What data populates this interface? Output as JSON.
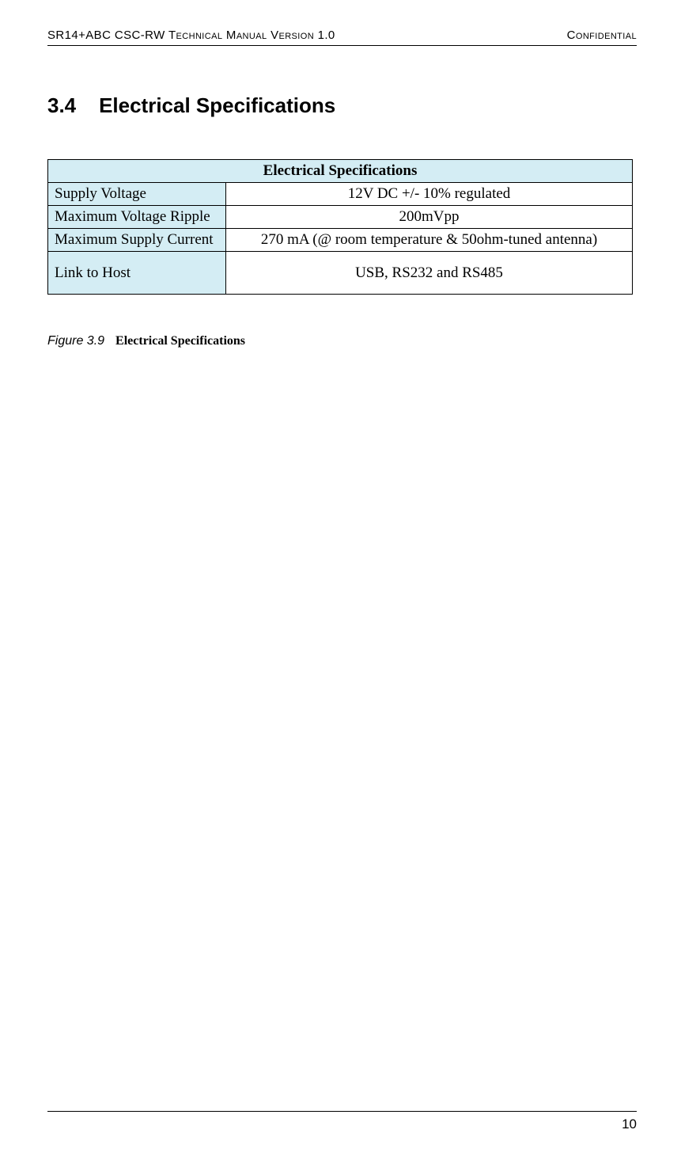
{
  "header": {
    "left": "SR14+ABC CSC-RW Technical Manual Version 1.0",
    "right": "Confidential"
  },
  "section": {
    "number": "3.4",
    "title": "Electrical Specifications"
  },
  "table": {
    "title": "Electrical Specifications",
    "rows": [
      {
        "label": "Supply Voltage",
        "value": "12V DC +/- 10% regulated"
      },
      {
        "label": "Maximum Voltage Ripple",
        "value": "200mVpp"
      },
      {
        "label": "Maximum Supply Current",
        "value": "270 mA (@ room temperature & 50ohm-tuned antenna)"
      },
      {
        "label": "Link to Host",
        "value": "USB, RS232 and RS485"
      }
    ]
  },
  "figure": {
    "number": "Figure 3.9",
    "title": "Electrical Specifications"
  },
  "footer": {
    "page": "10"
  },
  "colors": {
    "table_header_bg": "#d4edf4",
    "border": "#000000",
    "background": "#ffffff",
    "text": "#000000"
  }
}
